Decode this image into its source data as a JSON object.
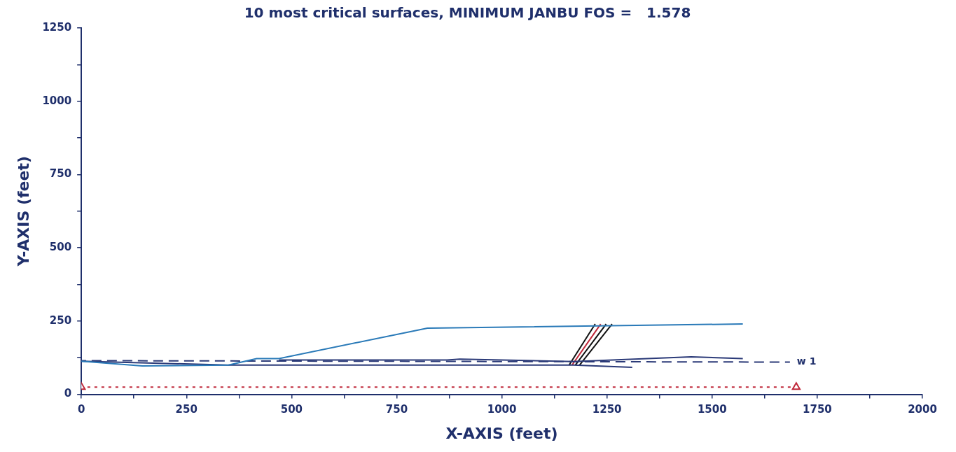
{
  "chart_data": {
    "type": "line",
    "title": "10 most critical surfaces, MINIMUM JANBU FOS =   1.578",
    "xlabel": "X-AXIS (feet)",
    "ylabel": "Y-AXIS (feet)",
    "xlim": [
      0,
      2000
    ],
    "ylim": [
      0,
      1250
    ],
    "xticks": [
      0,
      {
        "value": 125,
        "label": null
      },
      250,
      {
        "value": 375,
        "label": null
      },
      500,
      {
        "value": 625,
        "label": null
      },
      750,
      {
        "value": 875,
        "label": null
      },
      1000,
      {
        "value": 1125,
        "label": null
      },
      1250,
      {
        "value": 1375,
        "label": null
      },
      1500,
      {
        "value": 1625,
        "label": null
      },
      1750,
      {
        "value": 1875,
        "label": null
      },
      2000
    ],
    "yticks": [
      0,
      {
        "value": 125,
        "label": null
      },
      250,
      {
        "value": 375,
        "label": null
      },
      500,
      {
        "value": 625,
        "label": null
      },
      750,
      {
        "value": 875,
        "label": null
      },
      1000,
      {
        "value": 1125,
        "label": null
      },
      1250
    ],
    "grid": false,
    "legend": false,
    "marker": "none",
    "line_style": "solid",
    "series": [
      {
        "color": "#2a7ab8",
        "x": [
          0,
          145,
          350,
          417,
          470,
          823,
          1573
        ],
        "values": [
          113,
          97,
          100,
          122,
          122,
          226,
          240
        ]
      },
      {
        "color": "#2b3a78",
        "x": [
          0,
          350,
          1170,
          1310
        ],
        "values": [
          113,
          100,
          100,
          92
        ]
      },
      {
        "color": "#2b3a78",
        "x": [
          470,
          870,
          900,
          1170,
          1450,
          1573
        ],
        "values": [
          117,
          117,
          120,
          112,
          128,
          122
        ]
      },
      {
        "name": "w 1",
        "color": "#2b3a78",
        "line_style": "dashed",
        "x": [
          0,
          1685
        ],
        "values": [
          115,
          110
        ]
      },
      {
        "color": "#c0283a",
        "line_style": "dotted",
        "marker": "triangle",
        "x": [
          0,
          1700
        ],
        "values": [
          25,
          25
        ]
      },
      {
        "color": "#111111",
        "x": [
          1160,
          1222
        ],
        "values": [
          100,
          240
        ]
      },
      {
        "color": "#c0283a",
        "x": [
          1167,
          1235
        ],
        "values": [
          100,
          240
        ]
      },
      {
        "color": "#111111",
        "x": [
          1175,
          1248
        ],
        "values": [
          100,
          240
        ]
      },
      {
        "color": "#111111",
        "x": [
          1185,
          1262
        ],
        "values": [
          100,
          240
        ]
      }
    ]
  }
}
